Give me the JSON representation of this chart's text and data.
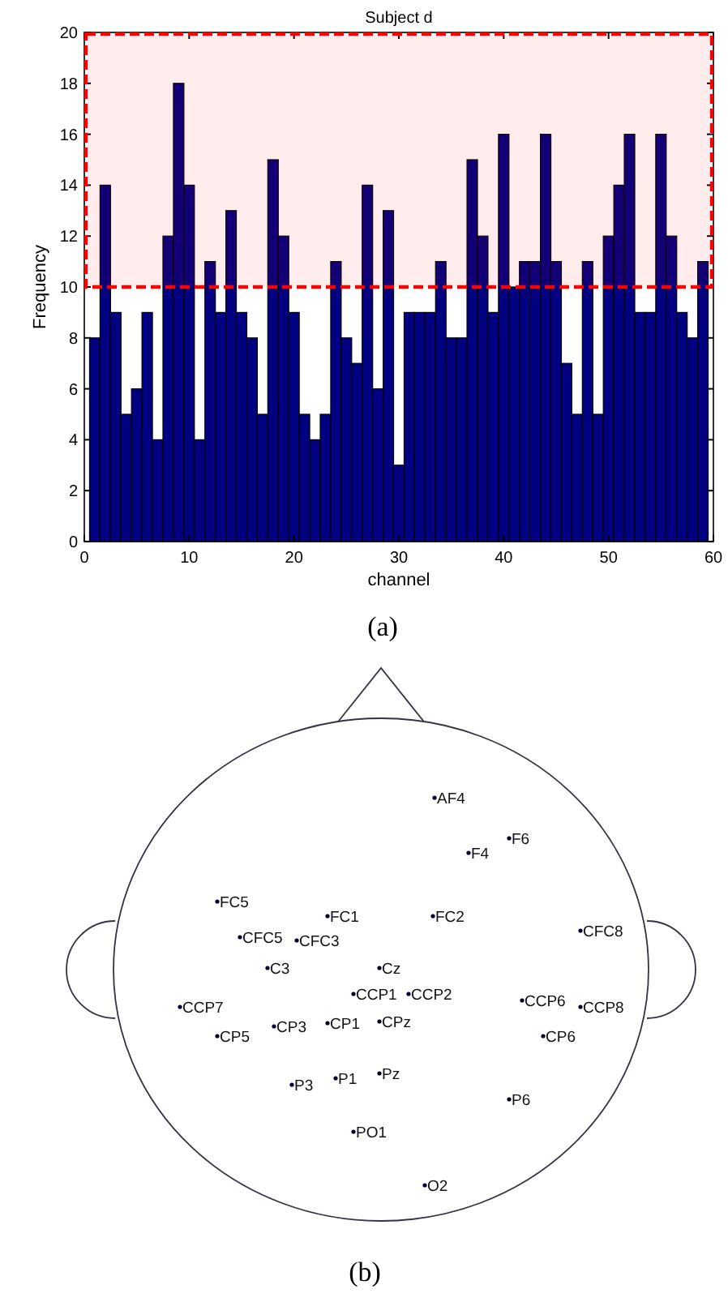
{
  "chart_data": [
    {
      "type": "bar",
      "title": "Subject d",
      "xlabel": "channel",
      "ylabel": "Frequency",
      "x": [
        1,
        2,
        3,
        4,
        5,
        6,
        7,
        8,
        9,
        10,
        11,
        12,
        13,
        14,
        15,
        16,
        17,
        18,
        19,
        20,
        21,
        22,
        23,
        24,
        25,
        26,
        27,
        28,
        29,
        30,
        31,
        32,
        33,
        34,
        35,
        36,
        37,
        38,
        39,
        40,
        41,
        42,
        43,
        44,
        45,
        46,
        47,
        48,
        49,
        50,
        51,
        52,
        53,
        54,
        55,
        56,
        57,
        58,
        59
      ],
      "values": [
        8,
        14,
        9,
        5,
        6,
        9,
        4,
        12,
        18,
        14,
        4,
        11,
        9,
        13,
        9,
        8,
        5,
        15,
        12,
        9,
        5,
        4,
        5,
        11,
        8,
        7,
        14,
        6,
        13,
        3,
        9,
        9,
        9,
        11,
        8,
        8,
        15,
        12,
        9,
        16,
        10,
        11,
        11,
        16,
        11,
        7,
        5,
        11,
        5,
        12,
        14,
        16,
        9,
        9,
        16,
        12,
        9,
        8,
        11
      ],
      "color": "#000080",
      "xlim": [
        0,
        60
      ],
      "xticks": [
        0,
        10,
        20,
        30,
        40,
        50,
        60
      ],
      "ylim": [
        0,
        20
      ],
      "yticks": [
        0,
        2,
        4,
        6,
        8,
        10,
        12,
        14,
        16,
        18,
        20
      ],
      "bands": [
        {
          "axis": "y",
          "from": 10,
          "to": 20,
          "color": "#ff0000"
        }
      ],
      "annotations": [
        "(a)"
      ]
    },
    {
      "type": "other",
      "annotations": [
        "AF4",
        "F6",
        "F4",
        "FC5",
        "FC1",
        "FC2",
        "CFC8",
        "CFC5",
        "CFC3",
        "C3",
        "Cz",
        "CCP1",
        "CCP2",
        "CCP6",
        "CCP8",
        "CCP7",
        "CP3",
        "CP1",
        "CPz",
        "CP5",
        "CP6",
        "P3",
        "P1",
        "Pz",
        "P6",
        "PO1",
        "O2",
        "(b)"
      ]
    }
  ]
}
